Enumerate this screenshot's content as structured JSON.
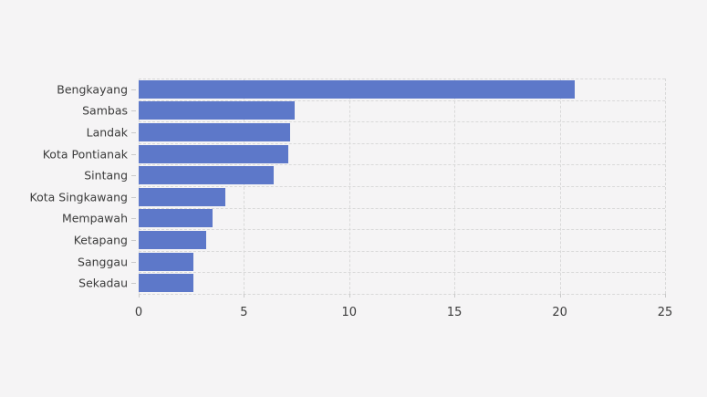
{
  "chart_data": {
    "type": "bar",
    "orientation": "horizontal",
    "title": "",
    "xlabel": "",
    "ylabel": "",
    "categories": [
      "Bengkayang",
      "Sambas",
      "Landak",
      "Kota Pontianak",
      "Sintang",
      "Kota Singkawang",
      "Mempawah",
      "Ketapang",
      "Sanggau",
      "Sekadau"
    ],
    "values": [
      20.7,
      7.4,
      7.2,
      7.1,
      6.4,
      4.1,
      3.5,
      3.2,
      2.6,
      2.6
    ],
    "x_ticks": [
      "0",
      "5",
      "10",
      "15",
      "20",
      "25"
    ],
    "x_tick_values": [
      0,
      5,
      10,
      15,
      20,
      25
    ],
    "xlim": [
      0,
      25
    ],
    "grid": true,
    "legend": "none",
    "bar_color": "#5d78c9",
    "background_color": "#f5f4f5",
    "gridline_color": "#d9d9d9",
    "tick_color": "#c9c9c9",
    "text_color": "#3b3b3b"
  }
}
